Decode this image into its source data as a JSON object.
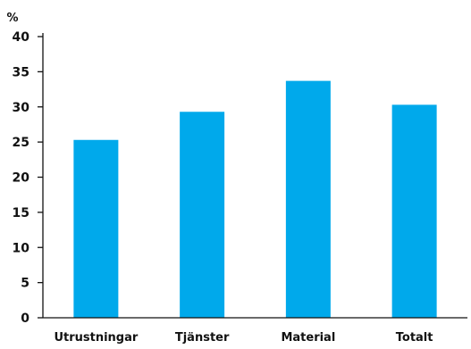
{
  "chart_data": {
    "type": "bar",
    "title": "",
    "xlabel": "",
    "ylabel": "%",
    "categories": [
      "Utrustningar",
      "Tjänster",
      "Material",
      "Totalt"
    ],
    "values": [
      25.3,
      29.3,
      33.7,
      30.3
    ],
    "ylim": [
      0,
      40
    ],
    "yticks": [
      "0",
      "5",
      "10",
      "15",
      "20",
      "25",
      "30",
      "35",
      "40"
    ],
    "grid": false,
    "legend": "none",
    "bar_color": "#00a9eb",
    "axis_color": "#111111"
  }
}
